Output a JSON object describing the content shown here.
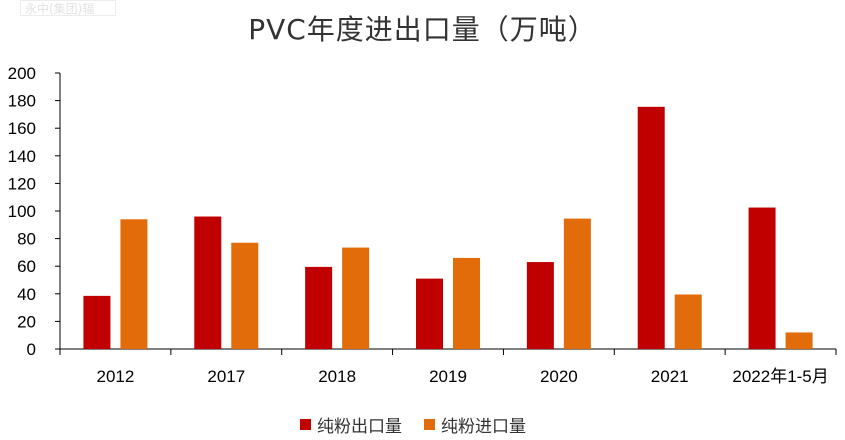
{
  "watermark": "永中(集团)辐",
  "chart_data": {
    "type": "bar",
    "title": "PVC年度进出口量（万吨）",
    "categories": [
      "2012",
      "2017",
      "2018",
      "2019",
      "2020",
      "2021",
      "2022年1-5月"
    ],
    "series": [
      {
        "name": "纯粉出口量",
        "color": "#C00000",
        "values": [
          38.5,
          96,
          59.5,
          51,
          63,
          175.5,
          102.5
        ]
      },
      {
        "name": "纯粉进口量",
        "color": "#E36C0A",
        "values": [
          94,
          77,
          73.5,
          66,
          94.5,
          39.5,
          12
        ]
      }
    ],
    "ylim": [
      0,
      200
    ],
    "yticks": [
      "0",
      "20",
      "40",
      "60",
      "80",
      "100",
      "120",
      "140",
      "160",
      "180",
      "200"
    ],
    "grid": false,
    "legend_position": "bottom"
  }
}
